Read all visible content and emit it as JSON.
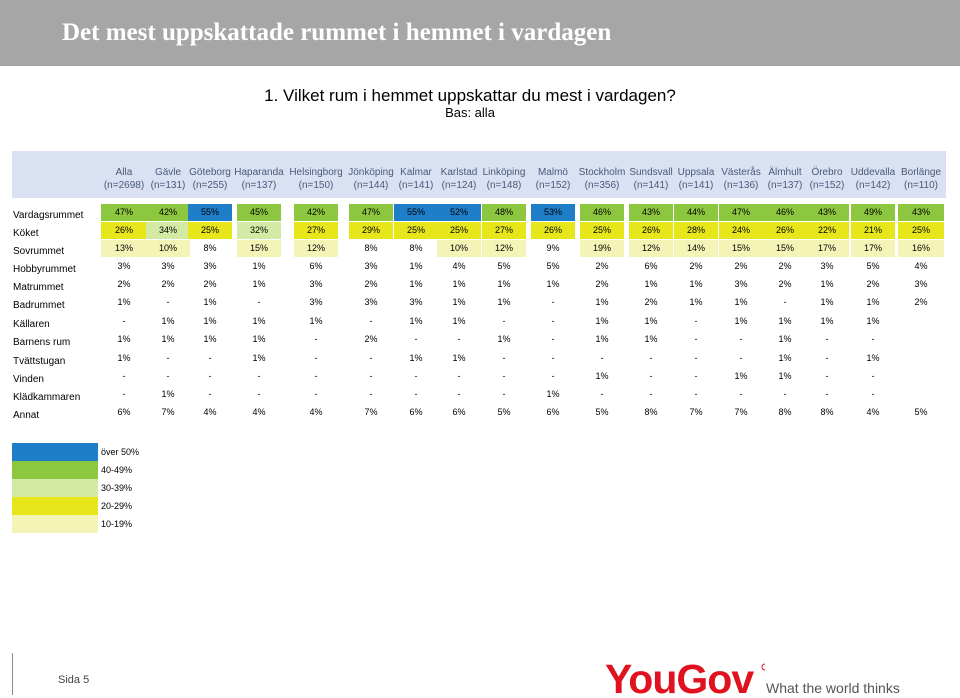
{
  "title": "Det mest uppskattade rummet i hemmet i vardagen",
  "question": "1.  Vilket rum i hemmet uppskattar du mest i vardagen?",
  "base": "Bas: alla",
  "columns": [
    {
      "name": "Alla",
      "n": "(n=2698)"
    },
    {
      "name": "Gävle",
      "n": "(n=131)"
    },
    {
      "name": "Göteborg",
      "n": "(n=255)"
    },
    {
      "name": "Haparanda",
      "n": "(n=137)"
    },
    {
      "name": "Helsingborg",
      "n": "(n=150)"
    },
    {
      "name": "Jönköping",
      "n": "(n=144)"
    },
    {
      "name": "Kalmar",
      "n": "(n=141)"
    },
    {
      "name": "Karlstad",
      "n": "(n=124)"
    },
    {
      "name": "Linköping",
      "n": "(n=148)"
    },
    {
      "name": "Malmö",
      "n": "(n=152)"
    },
    {
      "name": "Stockholm",
      "n": "(n=356)"
    },
    {
      "name": "Sundsvall",
      "n": "(n=141)"
    },
    {
      "name": "Uppsala",
      "n": "(n=141)"
    },
    {
      "name": "Västerås",
      "n": "(n=136)"
    },
    {
      "name": "Älmhult",
      "n": "(n=137)"
    },
    {
      "name": "Örebro",
      "n": "(n=152)"
    },
    {
      "name": "Uddevalla",
      "n": "(n=142)"
    },
    {
      "name": "Borlänge",
      "n": "(n=110)"
    }
  ],
  "rows": [
    {
      "label": "Vardagsrummet",
      "values": [
        "47%",
        "42%",
        "55%",
        "45%",
        "42%",
        "47%",
        "55%",
        "52%",
        "48%",
        "53%",
        "46%",
        "43%",
        "44%",
        "47%",
        "46%",
        "43%",
        "49%",
        "43%"
      ]
    },
    {
      "label": "Köket",
      "values": [
        "26%",
        "34%",
        "25%",
        "32%",
        "27%",
        "29%",
        "25%",
        "25%",
        "27%",
        "26%",
        "25%",
        "26%",
        "28%",
        "24%",
        "26%",
        "22%",
        "21%",
        "25%"
      ]
    },
    {
      "label": "Sovrummet",
      "values": [
        "13%",
        "10%",
        "8%",
        "15%",
        "12%",
        "8%",
        "8%",
        "10%",
        "12%",
        "9%",
        "19%",
        "12%",
        "14%",
        "15%",
        "15%",
        "17%",
        "17%",
        "16%"
      ]
    },
    {
      "label": "Hobbyrummet",
      "values": [
        "3%",
        "3%",
        "3%",
        "1%",
        "6%",
        "3%",
        "1%",
        "4%",
        "5%",
        "5%",
        "2%",
        "6%",
        "2%",
        "2%",
        "2%",
        "3%",
        "5%",
        "4%"
      ]
    },
    {
      "label": "Matrummet",
      "values": [
        "2%",
        "2%",
        "2%",
        "1%",
        "3%",
        "2%",
        "1%",
        "1%",
        "1%",
        "1%",
        "2%",
        "1%",
        "1%",
        "3%",
        "2%",
        "1%",
        "2%",
        "3%"
      ]
    },
    {
      "label": "Badrummet",
      "values": [
        "1%",
        "-",
        "1%",
        "-",
        "3%",
        "3%",
        "3%",
        "1%",
        "1%",
        "-",
        "1%",
        "2%",
        "1%",
        "1%",
        "-",
        "1%",
        "1%",
        "2%"
      ]
    },
    {
      "label": "Källaren",
      "values": [
        "-",
        "1%",
        "1%",
        "1%",
        "1%",
        "-",
        "1%",
        "1%",
        "-",
        "-",
        "1%",
        "1%",
        "-",
        "1%",
        "1%",
        "1%",
        "1%",
        ""
      ]
    },
    {
      "label": "Barnens rum",
      "values": [
        "1%",
        "1%",
        "1%",
        "1%",
        "-",
        "2%",
        "-",
        "-",
        "1%",
        "-",
        "1%",
        "1%",
        "-",
        "-",
        "1%",
        "-",
        "-",
        ""
      ]
    },
    {
      "label": "Tvättstugan",
      "values": [
        "1%",
        "-",
        "-",
        "1%",
        "-",
        "-",
        "1%",
        "1%",
        "-",
        "-",
        "-",
        "-",
        "-",
        "-",
        "1%",
        "-",
        "1%",
        ""
      ]
    },
    {
      "label": "Vinden",
      "values": [
        "-",
        "-",
        "-",
        "-",
        "-",
        "-",
        "-",
        "-",
        "-",
        "-",
        "1%",
        "-",
        "-",
        "1%",
        "1%",
        "-",
        "-",
        ""
      ]
    },
    {
      "label": "Klädkammaren",
      "values": [
        "-",
        "1%",
        "-",
        "-",
        "-",
        "-",
        "-",
        "-",
        "-",
        "1%",
        "-",
        "-",
        "-",
        "-",
        "-",
        "-",
        "-",
        ""
      ]
    },
    {
      "label": "Annat",
      "values": [
        "6%",
        "7%",
        "4%",
        "4%",
        "4%",
        "7%",
        "6%",
        "6%",
        "5%",
        "6%",
        "5%",
        "8%",
        "7%",
        "7%",
        "8%",
        "8%",
        "4%",
        "5%"
      ]
    }
  ],
  "legend": [
    {
      "label": "över 50%",
      "color": "#1e7ec8"
    },
    {
      "label": "40-49%",
      "color": "#8dc63f"
    },
    {
      "label": "30-39%",
      "color": "#d3eaa4"
    },
    {
      "label": "20-29%",
      "color": "#e6e61a"
    },
    {
      "label": "10-19%",
      "color": "#f4f4b6"
    }
  ],
  "footer": {
    "page": "Sida 5",
    "logo": "YouGov",
    "tagline": "What the world thinks"
  }
}
